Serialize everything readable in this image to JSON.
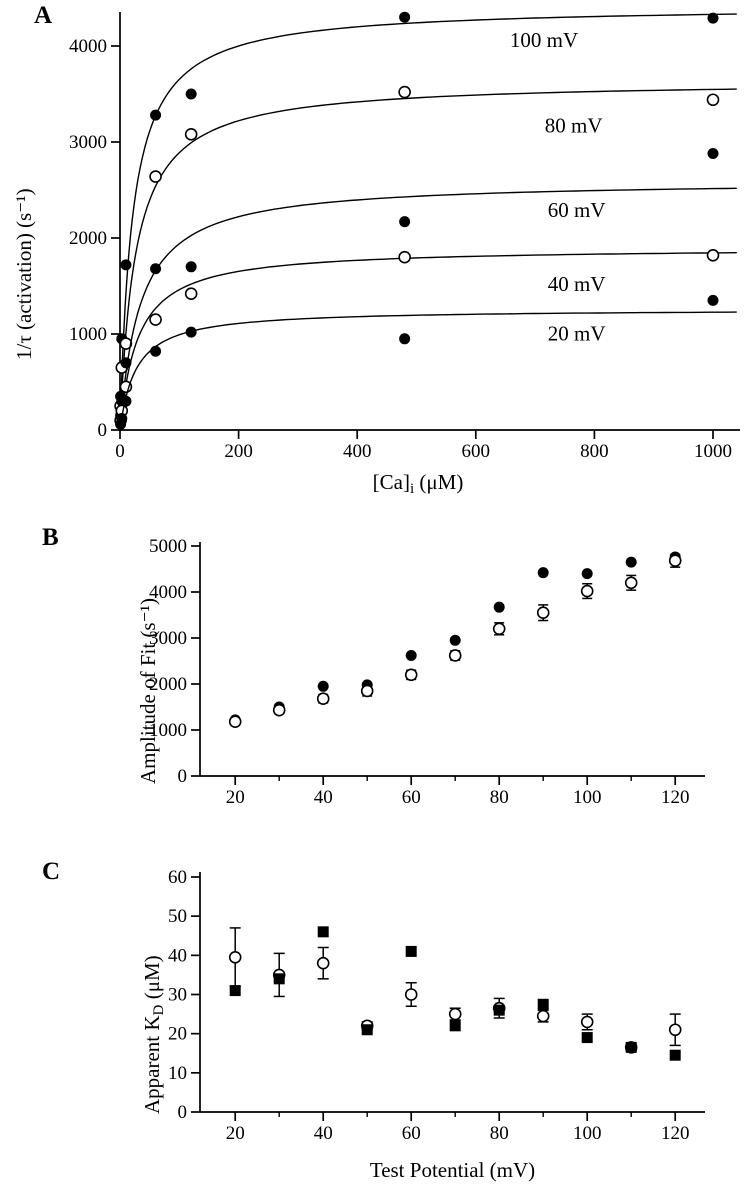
{
  "figure_labels": {
    "panel_a": "A",
    "panel_b": "B",
    "panel_c": "C"
  },
  "axis_labels": {
    "a_y": "1/τ (activation)  (s⁻¹)",
    "a_x_pre": "[Ca]",
    "a_x_sub": "i",
    "a_x_post": " (μM)",
    "b_y": "Amplitude of Fit (s⁻¹)",
    "c_y_pre": "Apparent K",
    "c_y_sub": "D",
    "c_y_post": " (μM)",
    "c_x": "Test Potential (mV)"
  },
  "chart_data": [
    {
      "id": "panel-a",
      "type": "scatter",
      "xlabel": "[Ca]i (μM)",
      "ylabel": "1/τ (activation) (s⁻¹)",
      "xlim": [
        0,
        1045
      ],
      "ylim": [
        0,
        4500
      ],
      "xticks": [
        0,
        200,
        400,
        600,
        800,
        1000
      ],
      "yticks": [
        0,
        1000,
        2000,
        3000,
        4000
      ],
      "grid": false,
      "curve_model": "michaelis-menten",
      "series": [
        {
          "name": "100 mV",
          "marker": "filled-circle",
          "x": [
            1,
            3,
            10,
            60,
            120,
            480,
            1000
          ],
          "y": [
            350,
            950,
            1720,
            3280,
            3500,
            4300,
            4290
          ],
          "fit": {
            "vmax": 4420,
            "kd": 21
          },
          "label": "100 mV",
          "label_x": 715,
          "label_y": 3990
        },
        {
          "name": "80 mV",
          "marker": "open-circle",
          "x": [
            1,
            3,
            10,
            60,
            120,
            480,
            1000
          ],
          "y": [
            250,
            650,
            900,
            2640,
            3080,
            3520,
            3440
          ],
          "fit": {
            "vmax": 3640,
            "kd": 26
          },
          "label": "80 mV",
          "label_x": 765,
          "label_y": 3100
        },
        {
          "name": "60 mV",
          "marker": "filled-circle",
          "x": [
            1,
            3,
            10,
            60,
            120,
            480,
            1000
          ],
          "y": [
            150,
            300,
            700,
            1680,
            1700,
            2170,
            2880
          ],
          "fit": {
            "vmax": 2600,
            "kd": 34
          },
          "label": "60 mV",
          "label_x": 770,
          "label_y": 2220
        },
        {
          "name": "40 mV",
          "marker": "open-circle",
          "x": [
            1,
            3,
            10,
            60,
            120,
            480,
            1000
          ],
          "y": [
            100,
            200,
            450,
            1150,
            1420,
            1800,
            1820
          ],
          "fit": {
            "vmax": 1900,
            "kd": 30
          },
          "label": "40 mV",
          "label_x": 770,
          "label_y": 1450
        },
        {
          "name": "20 mV",
          "marker": "filled-circle",
          "x": [
            1,
            3,
            10,
            60,
            120,
            480,
            1000
          ],
          "y": [
            60,
            120,
            300,
            820,
            1020,
            950,
            1350
          ],
          "fit": {
            "vmax": 1260,
            "kd": 27
          },
          "label": "20 mV",
          "label_x": 770,
          "label_y": 930
        }
      ]
    },
    {
      "id": "panel-b",
      "type": "scatter",
      "xlabel": "",
      "ylabel": "Amplitude of Fit (s⁻¹)",
      "xlim": [
        12,
        128
      ],
      "ylim": [
        0,
        5000
      ],
      "xticks": [
        20,
        40,
        60,
        80,
        100,
        120
      ],
      "xminor": [
        30,
        50,
        70,
        90,
        110
      ],
      "yticks": [
        0,
        1000,
        2000,
        3000,
        4000,
        5000
      ],
      "grid": false,
      "series": [
        {
          "name": "filled circles",
          "marker": "filled-circle",
          "x": [
            20,
            30,
            40,
            50,
            60,
            70,
            80,
            90,
            100,
            110,
            120
          ],
          "y": [
            1220,
            1500,
            1950,
            1980,
            2620,
            2950,
            3670,
            4420,
            4400,
            4650,
            4760
          ],
          "yerr": [
            0,
            0,
            0,
            0,
            0,
            0,
            0,
            0,
            0,
            0,
            0
          ]
        },
        {
          "name": "open circles",
          "marker": "open-circle",
          "x": [
            20,
            30,
            40,
            50,
            60,
            70,
            80,
            90,
            100,
            110,
            120
          ],
          "y": [
            1180,
            1430,
            1680,
            1850,
            2200,
            2620,
            3200,
            3550,
            4020,
            4200,
            4680
          ],
          "yerr": [
            60,
            70,
            90,
            110,
            100,
            100,
            130,
            170,
            160,
            160,
            140
          ]
        }
      ]
    },
    {
      "id": "panel-c",
      "type": "scatter",
      "xlabel": "Test Potential (mV)",
      "ylabel": "Apparent KD (μM)",
      "xlim": [
        12,
        128
      ],
      "ylim": [
        0,
        60
      ],
      "xticks": [
        20,
        40,
        60,
        80,
        100,
        120
      ],
      "xminor": [
        30,
        50,
        70,
        90,
        110
      ],
      "yticks": [
        0,
        10,
        20,
        30,
        40,
        50,
        60
      ],
      "grid": false,
      "series": [
        {
          "name": "open circles",
          "marker": "open-circle",
          "x": [
            20,
            30,
            40,
            50,
            60,
            70,
            80,
            90,
            100,
            110,
            120
          ],
          "y": [
            39.5,
            35,
            38,
            22,
            30,
            25,
            26.5,
            24.5,
            23,
            16.5,
            21
          ],
          "yerr": [
            7.5,
            5.5,
            4,
            1,
            3,
            1.5,
            2.5,
            1.5,
            2,
            0.8,
            4
          ]
        },
        {
          "name": "filled squares",
          "marker": "filled-square",
          "x": [
            20,
            30,
            40,
            50,
            60,
            70,
            80,
            90,
            100,
            110,
            120
          ],
          "y": [
            31,
            34,
            46,
            21,
            41,
            22,
            26,
            27.5,
            19,
            16.5,
            14.5
          ],
          "yerr": [
            0,
            0,
            0,
            0,
            0,
            0,
            0,
            0,
            0,
            0,
            0
          ]
        }
      ]
    }
  ]
}
